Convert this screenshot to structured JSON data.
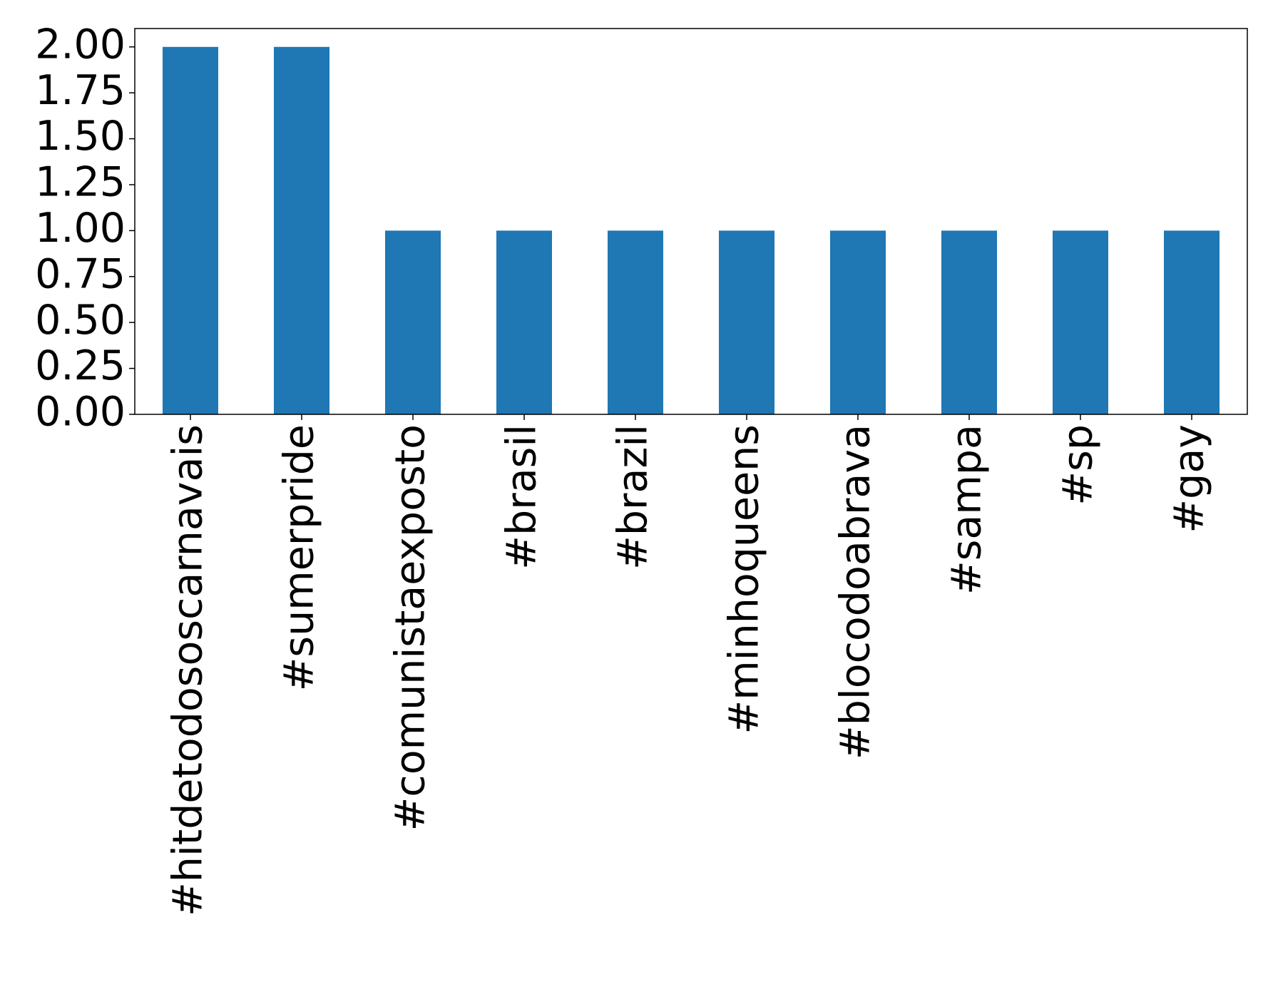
{
  "chart_data": {
    "type": "bar",
    "categories": [
      "#hitdetodososcarnavais",
      "#sumerpride",
      "#comunistaexposto",
      "#brasil",
      "#brazil",
      "#minhoqueens",
      "#blocodoabrava",
      "#sampa",
      "#sp",
      "#gay"
    ],
    "values": [
      2,
      2,
      1,
      1,
      1,
      1,
      1,
      1,
      1,
      1
    ],
    "color": "#1f77b4",
    "ylim": [
      0,
      2.1
    ],
    "yticks": [
      {
        "value": 0,
        "label": "0.00"
      },
      {
        "value": 0.25,
        "label": "0.25"
      },
      {
        "value": 0.5,
        "label": "0.50"
      },
      {
        "value": 0.75,
        "label": "0.75"
      },
      {
        "value": 1,
        "label": "1.00"
      },
      {
        "value": 1.25,
        "label": "1.25"
      },
      {
        "value": 1.5,
        "label": "1.50"
      },
      {
        "value": 1.75,
        "label": "1.75"
      },
      {
        "value": 2,
        "label": "2.00"
      }
    ],
    "grid": false
  }
}
